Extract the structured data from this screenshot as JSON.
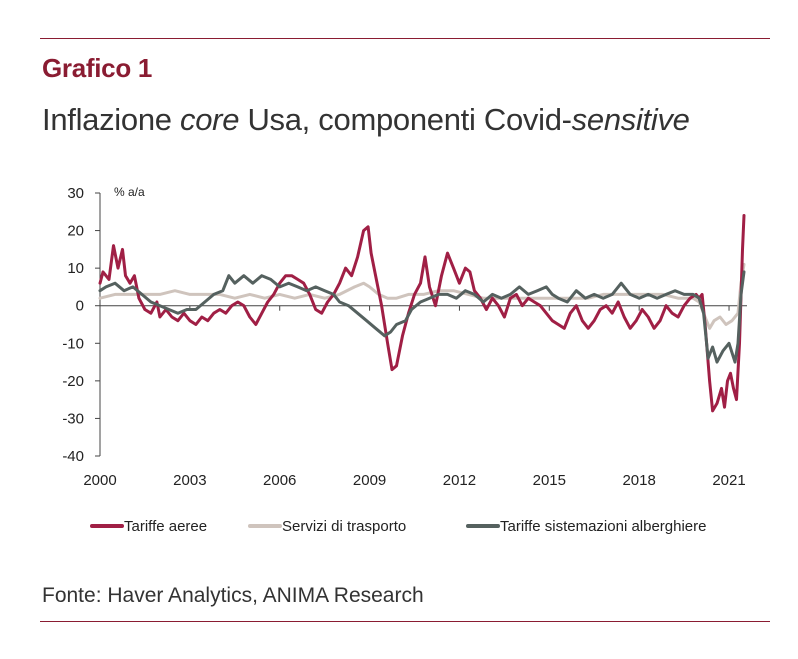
{
  "figure": {
    "label": "Grafico 1",
    "title_parts": [
      "Inflazione ",
      "core",
      " Usa, componenti Covid-",
      "sensitive"
    ],
    "source": "Fonte: Haver Analytics, ANIMA Research"
  },
  "colors": {
    "accent": "#8a1c32",
    "series_airfares": "#a01f45",
    "series_transport": "#cfc4bd",
    "series_lodging": "#55615f"
  },
  "chart_data": {
    "type": "line",
    "unit": "% a/a",
    "xlim": [
      2000,
      2021.6
    ],
    "ylim": [
      -40,
      30
    ],
    "y_ticks": [
      30,
      20,
      10,
      0,
      -10,
      -20,
      -30,
      -40
    ],
    "x_ticks": [
      2000,
      2003,
      2006,
      2009,
      2012,
      2015,
      2018,
      2021
    ],
    "legend_position": "bottom",
    "grid": false,
    "series": [
      {
        "name": "Tariffe aeree",
        "color": "#a01f45",
        "points": [
          [
            2000,
            6
          ],
          [
            2000.1,
            9
          ],
          [
            2000.3,
            7
          ],
          [
            2000.45,
            16
          ],
          [
            2000.6,
            10
          ],
          [
            2000.75,
            15
          ],
          [
            2000.85,
            8
          ],
          [
            2001.0,
            6
          ],
          [
            2001.15,
            8
          ],
          [
            2001.3,
            2
          ],
          [
            2001.5,
            -1
          ],
          [
            2001.7,
            -2
          ],
          [
            2001.9,
            1
          ],
          [
            2002.0,
            -3
          ],
          [
            2002.2,
            -1
          ],
          [
            2002.4,
            -3
          ],
          [
            2002.6,
            -4
          ],
          [
            2002.8,
            -2
          ],
          [
            2003.0,
            -4
          ],
          [
            2003.2,
            -5
          ],
          [
            2003.4,
            -3
          ],
          [
            2003.6,
            -4
          ],
          [
            2003.8,
            -2
          ],
          [
            2004.0,
            -1
          ],
          [
            2004.2,
            -2
          ],
          [
            2004.4,
            0
          ],
          [
            2004.6,
            1
          ],
          [
            2004.8,
            0
          ],
          [
            2005.0,
            -3
          ],
          [
            2005.2,
            -5
          ],
          [
            2005.4,
            -2
          ],
          [
            2005.6,
            1
          ],
          [
            2005.8,
            3
          ],
          [
            2006.0,
            6
          ],
          [
            2006.2,
            8
          ],
          [
            2006.4,
            8
          ],
          [
            2006.6,
            7
          ],
          [
            2006.8,
            6
          ],
          [
            2007.0,
            3
          ],
          [
            2007.2,
            -1
          ],
          [
            2007.4,
            -2
          ],
          [
            2007.6,
            1
          ],
          [
            2007.8,
            3
          ],
          [
            2008.0,
            6
          ],
          [
            2008.2,
            10
          ],
          [
            2008.4,
            8
          ],
          [
            2008.6,
            13
          ],
          [
            2008.8,
            20
          ],
          [
            2008.95,
            21
          ],
          [
            2009.05,
            14
          ],
          [
            2009.2,
            8
          ],
          [
            2009.4,
            0
          ],
          [
            2009.6,
            -10
          ],
          [
            2009.75,
            -17
          ],
          [
            2009.9,
            -16
          ],
          [
            2010.1,
            -8
          ],
          [
            2010.3,
            -2
          ],
          [
            2010.5,
            3
          ],
          [
            2010.7,
            6
          ],
          [
            2010.85,
            13
          ],
          [
            2011.0,
            5
          ],
          [
            2011.2,
            0
          ],
          [
            2011.4,
            8
          ],
          [
            2011.6,
            14
          ],
          [
            2011.8,
            10
          ],
          [
            2012.0,
            6
          ],
          [
            2012.2,
            10
          ],
          [
            2012.35,
            9
          ],
          [
            2012.5,
            4
          ],
          [
            2012.7,
            2
          ],
          [
            2012.9,
            -1
          ],
          [
            2013.1,
            2
          ],
          [
            2013.3,
            0
          ],
          [
            2013.5,
            -3
          ],
          [
            2013.7,
            2
          ],
          [
            2013.9,
            3
          ],
          [
            2014.1,
            0
          ],
          [
            2014.3,
            2
          ],
          [
            2014.5,
            1
          ],
          [
            2014.7,
            0
          ],
          [
            2014.9,
            -2
          ],
          [
            2015.1,
            -4
          ],
          [
            2015.3,
            -5
          ],
          [
            2015.5,
            -6
          ],
          [
            2015.7,
            -2
          ],
          [
            2015.9,
            0
          ],
          [
            2016.1,
            -4
          ],
          [
            2016.3,
            -6
          ],
          [
            2016.5,
            -4
          ],
          [
            2016.7,
            -1
          ],
          [
            2016.9,
            0
          ],
          [
            2017.1,
            -2
          ],
          [
            2017.3,
            1
          ],
          [
            2017.5,
            -3
          ],
          [
            2017.7,
            -6
          ],
          [
            2017.9,
            -4
          ],
          [
            2018.1,
            -1
          ],
          [
            2018.3,
            -3
          ],
          [
            2018.5,
            -6
          ],
          [
            2018.7,
            -4
          ],
          [
            2018.9,
            0
          ],
          [
            2019.1,
            -2
          ],
          [
            2019.3,
            -3
          ],
          [
            2019.5,
            0
          ],
          [
            2019.7,
            2
          ],
          [
            2019.9,
            3
          ],
          [
            2020.0,
            2
          ],
          [
            2020.1,
            3
          ],
          [
            2020.2,
            -5
          ],
          [
            2020.35,
            -20
          ],
          [
            2020.45,
            -28
          ],
          [
            2020.6,
            -26
          ],
          [
            2020.75,
            -22
          ],
          [
            2020.85,
            -27
          ],
          [
            2020.95,
            -20
          ],
          [
            2021.05,
            -18
          ],
          [
            2021.15,
            -22
          ],
          [
            2021.25,
            -25
          ],
          [
            2021.35,
            -10
          ],
          [
            2021.45,
            15
          ],
          [
            2021.5,
            24
          ]
        ]
      },
      {
        "name": "Servizi di trasporto",
        "color": "#cfc4bd",
        "points": [
          [
            2000,
            2
          ],
          [
            2000.5,
            3
          ],
          [
            2001.0,
            3
          ],
          [
            2001.5,
            3
          ],
          [
            2002.0,
            3
          ],
          [
            2002.5,
            4
          ],
          [
            2003.0,
            3
          ],
          [
            2003.5,
            3
          ],
          [
            2004.0,
            3
          ],
          [
            2004.5,
            2
          ],
          [
            2005.0,
            3
          ],
          [
            2005.5,
            2
          ],
          [
            2006.0,
            3
          ],
          [
            2006.5,
            2
          ],
          [
            2007.0,
            3
          ],
          [
            2007.5,
            2
          ],
          [
            2008.0,
            3
          ],
          [
            2008.5,
            5
          ],
          [
            2008.8,
            6
          ],
          [
            2009.0,
            5
          ],
          [
            2009.3,
            3
          ],
          [
            2009.6,
            2
          ],
          [
            2009.9,
            2
          ],
          [
            2010.3,
            3
          ],
          [
            2010.8,
            3
          ],
          [
            2011.3,
            4
          ],
          [
            2011.8,
            4
          ],
          [
            2012.3,
            3
          ],
          [
            2012.8,
            2
          ],
          [
            2013.3,
            2
          ],
          [
            2013.8,
            2
          ],
          [
            2014.3,
            2
          ],
          [
            2014.8,
            2
          ],
          [
            2015.3,
            2
          ],
          [
            2015.8,
            2
          ],
          [
            2016.3,
            2
          ],
          [
            2016.8,
            3
          ],
          [
            2017.3,
            3
          ],
          [
            2017.8,
            3
          ],
          [
            2018.3,
            3
          ],
          [
            2018.8,
            3
          ],
          [
            2019.3,
            2
          ],
          [
            2019.8,
            2
          ],
          [
            2020.0,
            1
          ],
          [
            2020.2,
            -3
          ],
          [
            2020.35,
            -6
          ],
          [
            2020.5,
            -4
          ],
          [
            2020.7,
            -3
          ],
          [
            2020.9,
            -5
          ],
          [
            2021.1,
            -4
          ],
          [
            2021.3,
            -2
          ],
          [
            2021.4,
            6
          ],
          [
            2021.5,
            11
          ]
        ]
      },
      {
        "name": "Tariffe sistemazioni alberghiere",
        "color": "#55615f",
        "points": [
          [
            2000,
            4
          ],
          [
            2000.2,
            5
          ],
          [
            2000.5,
            6
          ],
          [
            2000.8,
            4
          ],
          [
            2001.1,
            5
          ],
          [
            2001.4,
            3
          ],
          [
            2001.7,
            1
          ],
          [
            2002.0,
            0
          ],
          [
            2002.3,
            -1
          ],
          [
            2002.6,
            -2
          ],
          [
            2002.9,
            -1
          ],
          [
            2003.2,
            -1
          ],
          [
            2003.5,
            1
          ],
          [
            2003.8,
            3
          ],
          [
            2004.1,
            4
          ],
          [
            2004.3,
            8
          ],
          [
            2004.5,
            6
          ],
          [
            2004.8,
            8
          ],
          [
            2005.1,
            6
          ],
          [
            2005.4,
            8
          ],
          [
            2005.7,
            7
          ],
          [
            2006.0,
            5
          ],
          [
            2006.3,
            6
          ],
          [
            2006.6,
            5
          ],
          [
            2006.9,
            4
          ],
          [
            2007.2,
            5
          ],
          [
            2007.5,
            4
          ],
          [
            2007.8,
            3
          ],
          [
            2008.0,
            1
          ],
          [
            2008.3,
            0
          ],
          [
            2008.6,
            -2
          ],
          [
            2008.9,
            -4
          ],
          [
            2009.2,
            -6
          ],
          [
            2009.5,
            -8
          ],
          [
            2009.7,
            -7
          ],
          [
            2009.9,
            -5
          ],
          [
            2010.2,
            -4
          ],
          [
            2010.4,
            -1
          ],
          [
            2010.7,
            1
          ],
          [
            2011.0,
            2
          ],
          [
            2011.3,
            3
          ],
          [
            2011.6,
            3
          ],
          [
            2011.9,
            2
          ],
          [
            2012.2,
            4
          ],
          [
            2012.5,
            3
          ],
          [
            2012.8,
            1
          ],
          [
            2013.1,
            3
          ],
          [
            2013.4,
            2
          ],
          [
            2013.7,
            3
          ],
          [
            2014.0,
            5
          ],
          [
            2014.3,
            3
          ],
          [
            2014.6,
            4
          ],
          [
            2014.9,
            5
          ],
          [
            2015.1,
            3
          ],
          [
            2015.3,
            2
          ],
          [
            2015.6,
            1
          ],
          [
            2015.9,
            4
          ],
          [
            2016.2,
            2
          ],
          [
            2016.5,
            3
          ],
          [
            2016.8,
            2
          ],
          [
            2017.1,
            3
          ],
          [
            2017.4,
            6
          ],
          [
            2017.7,
            3
          ],
          [
            2018.0,
            2
          ],
          [
            2018.3,
            3
          ],
          [
            2018.6,
            2
          ],
          [
            2018.9,
            3
          ],
          [
            2019.2,
            4
          ],
          [
            2019.5,
            3
          ],
          [
            2019.8,
            3
          ],
          [
            2020.0,
            2
          ],
          [
            2020.15,
            -2
          ],
          [
            2020.3,
            -14
          ],
          [
            2020.45,
            -11
          ],
          [
            2020.6,
            -15
          ],
          [
            2020.8,
            -12
          ],
          [
            2021.0,
            -10
          ],
          [
            2021.2,
            -15
          ],
          [
            2021.3,
            -10
          ],
          [
            2021.4,
            3
          ],
          [
            2021.5,
            9
          ]
        ]
      }
    ]
  }
}
